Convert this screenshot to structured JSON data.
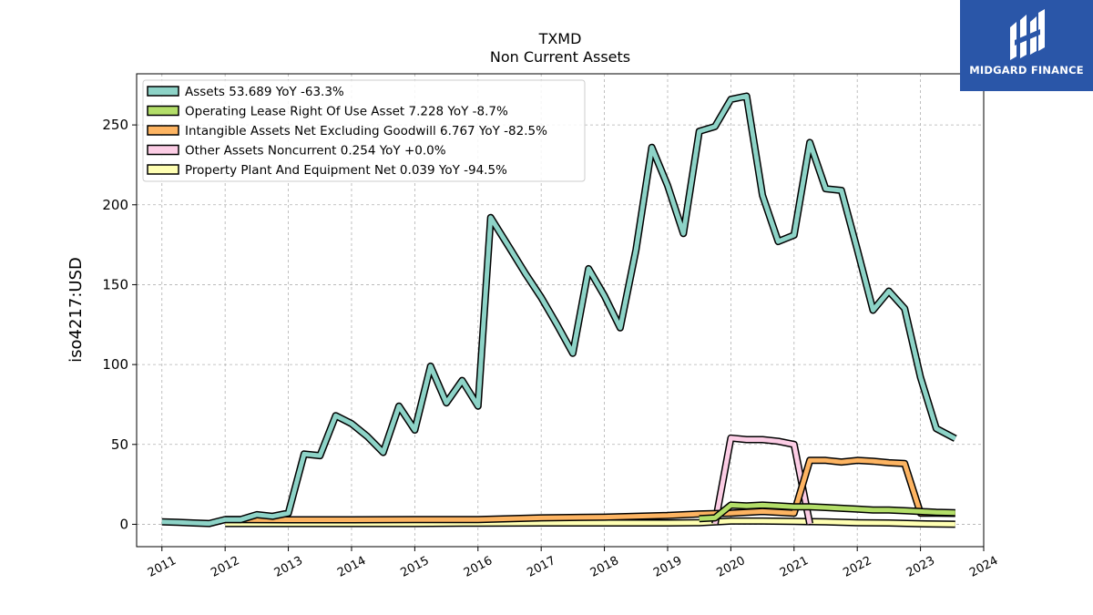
{
  "logo": {
    "text": "MIDGARD FINANCE",
    "background": "#2a56a8"
  },
  "chart_data": {
    "type": "line",
    "title": "TXMD",
    "subtitle": "Non Current  Assets",
    "ylabel": "iso4217:USD",
    "xlabel": "",
    "xlim": [
      2010.6,
      2024.0
    ],
    "ylim": [
      -14,
      282
    ],
    "xticks": [
      2011,
      2012,
      2013,
      2014,
      2015,
      2016,
      2017,
      2018,
      2019,
      2020,
      2021,
      2022,
      2023,
      2024
    ],
    "yticks": [
      0,
      50,
      100,
      150,
      200,
      250
    ],
    "grid": true,
    "legend_position": "top-left",
    "series": [
      {
        "name": "Assets",
        "legend": "Assets  53.689 YoY -63.3%",
        "color": "#8dd3c7",
        "points": [
          [
            2011.0,
            1.5
          ],
          [
            2011.25,
            1.2
          ],
          [
            2011.5,
            0.8
          ],
          [
            2011.75,
            0.5
          ],
          [
            2012.0,
            3.0
          ],
          [
            2012.25,
            3.0
          ],
          [
            2012.5,
            6.0
          ],
          [
            2012.75,
            5.0
          ],
          [
            2013.0,
            7.0
          ],
          [
            2013.25,
            44.0
          ],
          [
            2013.5,
            43.0
          ],
          [
            2013.75,
            68.0
          ],
          [
            2014.0,
            63.0
          ],
          [
            2014.25,
            55.0
          ],
          [
            2014.5,
            45.0
          ],
          [
            2014.75,
            74.0
          ],
          [
            2015.0,
            59.0
          ],
          [
            2015.25,
            99.0
          ],
          [
            2015.5,
            76.0
          ],
          [
            2015.75,
            90.0
          ],
          [
            2016.0,
            74.0
          ],
          [
            2016.2,
            192.0
          ],
          [
            2016.5,
            173.0
          ],
          [
            2016.75,
            157.0
          ],
          [
            2017.0,
            142.0
          ],
          [
            2017.25,
            125.0
          ],
          [
            2017.5,
            107.0
          ],
          [
            2017.75,
            160.0
          ],
          [
            2018.0,
            143.0
          ],
          [
            2018.25,
            123.0
          ],
          [
            2018.5,
            172.0
          ],
          [
            2018.75,
            236.0
          ],
          [
            2019.0,
            212.0
          ],
          [
            2019.25,
            182.0
          ],
          [
            2019.5,
            246.0
          ],
          [
            2019.75,
            249.0
          ],
          [
            2020.0,
            266.0
          ],
          [
            2020.25,
            268.0
          ],
          [
            2020.5,
            206.0
          ],
          [
            2020.75,
            177.0
          ],
          [
            2021.0,
            181.0
          ],
          [
            2021.25,
            239.0
          ],
          [
            2021.5,
            210.0
          ],
          [
            2021.75,
            209.0
          ],
          [
            2022.0,
            172.0
          ],
          [
            2022.25,
            134.0
          ],
          [
            2022.5,
            146.0
          ],
          [
            2022.75,
            135.0
          ],
          [
            2023.0,
            92.0
          ],
          [
            2023.25,
            60.0
          ],
          [
            2023.55,
            53.7
          ]
        ]
      },
      {
        "name": "Operating Lease Right Of Use Asset",
        "legend": "Operating Lease Right Of Use Asset  7.228 YoY -8.7%",
        "color": "#b3de69",
        "points": [
          [
            2019.5,
            3.5
          ],
          [
            2019.75,
            4.0
          ],
          [
            2020.0,
            12.0
          ],
          [
            2020.25,
            11.5
          ],
          [
            2020.5,
            12.0
          ],
          [
            2020.75,
            11.5
          ],
          [
            2021.0,
            11.0
          ],
          [
            2021.25,
            11.0
          ],
          [
            2021.5,
            10.5
          ],
          [
            2021.75,
            10.0
          ],
          [
            2022.0,
            9.5
          ],
          [
            2022.25,
            9.0
          ],
          [
            2022.5,
            9.0
          ],
          [
            2022.75,
            8.5
          ],
          [
            2023.0,
            8.0
          ],
          [
            2023.25,
            7.5
          ],
          [
            2023.55,
            7.2
          ]
        ]
      },
      {
        "name": "Intangible Assets Net Excluding Goodwill",
        "legend": "Intangible Assets Net Excluding Goodwill  6.767 YoY -82.5%",
        "color": "#fdb462",
        "points": [
          [
            2012.0,
            3.0
          ],
          [
            2013.0,
            2.8
          ],
          [
            2014.0,
            2.8
          ],
          [
            2015.0,
            3.0
          ],
          [
            2016.0,
            3.0
          ],
          [
            2017.0,
            4.0
          ],
          [
            2018.0,
            4.5
          ],
          [
            2019.0,
            5.5
          ],
          [
            2019.5,
            6.5
          ],
          [
            2020.0,
            7.0
          ],
          [
            2020.5,
            8.0
          ],
          [
            2021.0,
            7.0
          ],
          [
            2021.25,
            40.0
          ],
          [
            2021.5,
            40.0
          ],
          [
            2021.75,
            39.0
          ],
          [
            2022.0,
            40.0
          ],
          [
            2022.25,
            39.5
          ],
          [
            2022.5,
            38.5
          ],
          [
            2022.75,
            38.0
          ],
          [
            2023.0,
            7.0
          ],
          [
            2023.25,
            7.0
          ],
          [
            2023.55,
            6.8
          ]
        ]
      },
      {
        "name": "Other Assets Noncurrent",
        "legend": "Other Assets Noncurrent  0.254 YoY +0.0%",
        "color": "#fccde5",
        "points": [
          [
            2019.75,
            0.3
          ],
          [
            2020.0,
            54.0
          ],
          [
            2020.25,
            53.0
          ],
          [
            2020.5,
            53.0
          ],
          [
            2020.75,
            52.0
          ],
          [
            2021.0,
            50.0
          ],
          [
            2021.25,
            0.3
          ]
        ]
      },
      {
        "name": "Property Plant And Equipment Net",
        "legend": "Property Plant And Equipment Net  0.039 YoY -94.5%",
        "color": "#ffffb3",
        "points": [
          [
            2012.0,
            0.5
          ],
          [
            2013.0,
            0.5
          ],
          [
            2014.0,
            0.5
          ],
          [
            2015.0,
            0.5
          ],
          [
            2016.0,
            0.7
          ],
          [
            2017.0,
            0.8
          ],
          [
            2018.0,
            0.8
          ],
          [
            2019.0,
            0.8
          ],
          [
            2019.5,
            1.0
          ],
          [
            2020.0,
            2.0
          ],
          [
            2020.5,
            2.0
          ],
          [
            2021.0,
            1.8
          ],
          [
            2021.5,
            1.5
          ],
          [
            2022.0,
            1.0
          ],
          [
            2022.5,
            0.8
          ],
          [
            2023.0,
            0.3
          ],
          [
            2023.55,
            0.04
          ]
        ]
      }
    ]
  }
}
